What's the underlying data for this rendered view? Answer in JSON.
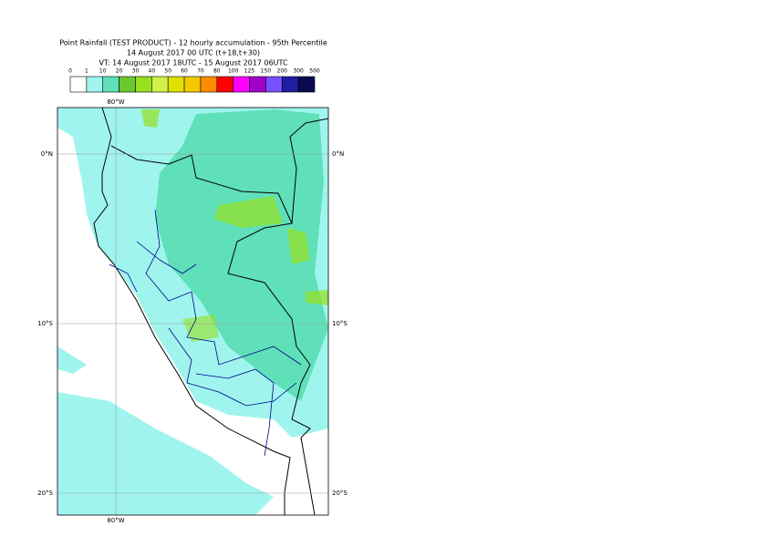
{
  "title": [
    "Point Rainfall (TEST PRODUCT) - 12 hourly accumulation - 95th Percentile",
    "14 August 2017 00 UTC (t+18,t+30)",
    "VT: 14 August 2017 18UTC - 15 August 2017 06UTC"
  ],
  "legend": {
    "labels": [
      "0",
      "1",
      "10",
      "20",
      "30",
      "40",
      "50",
      "60",
      "70",
      "80",
      "100",
      "125",
      "150",
      "200",
      "300",
      "500"
    ],
    "colors": [
      "#ffffff",
      "#9ff5ee",
      "#5fe0b8",
      "#6cc830",
      "#96e01e",
      "#d2f04a",
      "#e1e100",
      "#f5c800",
      "#ff8c00",
      "#ff0000",
      "#ff00ff",
      "#a000c8",
      "#7850ff",
      "#1e1ea0",
      "#0a0a50"
    ]
  },
  "axis_labels": {
    "top": "80°W",
    "bottom": "80°W",
    "left": [
      "0°N",
      "10°S",
      "20°S"
    ],
    "right": [
      "0°N",
      "10°S",
      "20°S"
    ]
  }
}
